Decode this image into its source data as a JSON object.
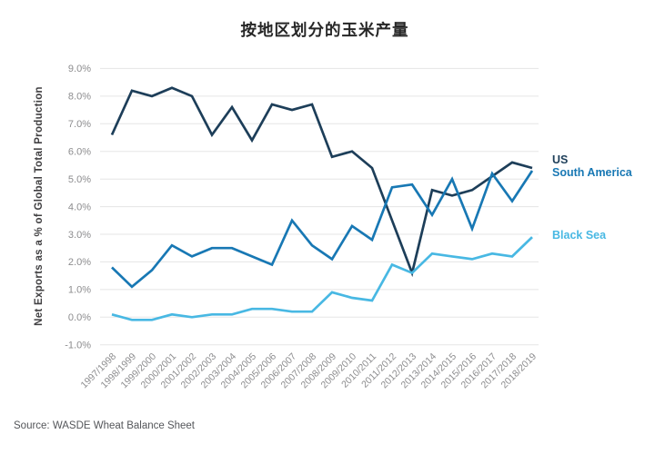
{
  "title": "按地区划分的玉米产量",
  "source": "Source: WASDE Wheat Balance Sheet",
  "chart_data": {
    "type": "line",
    "title": "按地区划分的玉米产量",
    "xlabel": "",
    "ylabel": "Net Exports as a % of Global Total Production",
    "ylim": [
      -1,
      9
    ],
    "ytick_step": 1,
    "ytick_format": "percent_one_decimal",
    "grid": true,
    "legend_position": "right-end-of-lines",
    "categories": [
      "1997/1998",
      "1998/1999",
      "1999/2000",
      "2000/2001",
      "2001/2002",
      "2002/2003",
      "2003/2004",
      "2004/2005",
      "2005/2006",
      "2006/2007",
      "2007/2008",
      "2008/2009",
      "2009/2010",
      "2010/2011",
      "2011/2012",
      "2012/2013",
      "2013/2014",
      "2014/2015",
      "2015/2016",
      "2016/2017",
      "2017/2018",
      "2018/2019"
    ],
    "series": [
      {
        "name": "US",
        "color": "#1d3e59",
        "values": [
          6.6,
          8.2,
          8.0,
          8.3,
          8.0,
          6.6,
          7.6,
          6.4,
          7.7,
          7.5,
          7.7,
          5.8,
          6.0,
          5.4,
          3.5,
          1.6,
          4.6,
          4.4,
          4.6,
          5.1,
          5.6,
          5.4
        ]
      },
      {
        "name": "South America",
        "color": "#1878b4",
        "values": [
          1.8,
          1.1,
          1.7,
          2.6,
          2.2,
          2.5,
          2.5,
          2.2,
          1.9,
          3.5,
          2.6,
          2.1,
          3.3,
          2.8,
          4.7,
          4.8,
          3.7,
          5.0,
          3.2,
          5.2,
          4.2,
          5.3
        ]
      },
      {
        "name": "Black Sea",
        "color": "#48b8e3",
        "values": [
          0.1,
          -0.1,
          -0.1,
          0.1,
          0.0,
          0.1,
          0.1,
          0.3,
          0.3,
          0.2,
          0.2,
          0.9,
          0.7,
          0.6,
          1.9,
          1.6,
          2.3,
          2.2,
          2.1,
          2.3,
          2.2,
          2.9
        ]
      }
    ]
  },
  "colors": {
    "background": "#ffffff",
    "gridline": "#e5e5e5",
    "tick_text": "#8c8c8e",
    "axis_title_text": "#414042",
    "title_text": "#262626",
    "source_text": "#54565a"
  }
}
